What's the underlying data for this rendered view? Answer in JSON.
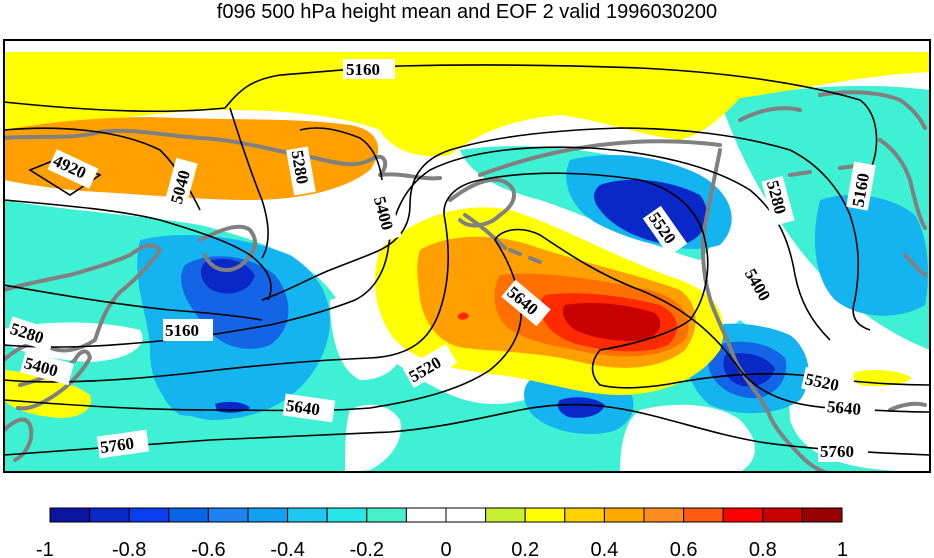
{
  "title": "f096 500 hPa height mean and EOF 2 valid 1996030200",
  "contour_labels": [
    "5160",
    "4920",
    "5040",
    "5280",
    "5400",
    "5520",
    "5640",
    "5280",
    "5400",
    "5160",
    "5280",
    "5160",
    "5400",
    "5520",
    "5640",
    "5760",
    "5520",
    "5640",
    "5760"
  ],
  "colorbar": {
    "colors": [
      "#0a14a0",
      "#0a28c8",
      "#0a3cf0",
      "#0a64e6",
      "#1e82f0",
      "#14a0f0",
      "#1ec8f0",
      "#28e6e6",
      "#46f0c8",
      "#ffffff",
      "#ffffff",
      "#c8f032",
      "#ffff00",
      "#ffd200",
      "#ffaa00",
      "#ff8c1e",
      "#ff5a14",
      "#ff0000",
      "#c80000",
      "#960000"
    ],
    "tick_labels": [
      "-1",
      "-0.8",
      "-0.6",
      "-0.4",
      "-0.2",
      "0",
      "0.2",
      "0.4",
      "0.6",
      "0.8",
      "1"
    ]
  },
  "colors": {
    "yellow": "#ffff00",
    "orange": "#ffa000",
    "dark_orange": "#ff7000",
    "red": "#ff2a00",
    "dark_red": "#c80000",
    "cyan": "#3ef0d4",
    "light_blue": "#14b4f0",
    "blue": "#1464e6",
    "dark_blue": "#0a28c8",
    "coast": "#808080"
  }
}
